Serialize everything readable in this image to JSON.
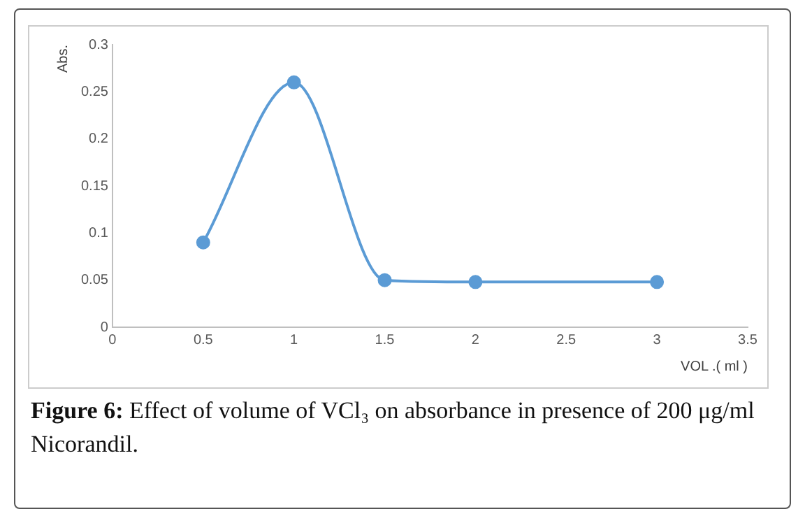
{
  "chart_data": {
    "type": "line",
    "title": "Figure 6: Effect of volume of VCl₃ on absorbance in presence of 200 μg/ml Nicorandil.",
    "xlabel": "VOL .( ml )",
    "ylabel": "Abs.",
    "x": [
      0.5,
      1,
      1.5,
      2,
      3
    ],
    "series": [
      {
        "color": "#5b9bd5",
        "values": [
          0.09,
          0.26,
          0.05,
          0.048,
          0.048
        ]
      }
    ],
    "xlim": [
      0,
      3.5
    ],
    "xticks": [
      0,
      0.5,
      1,
      1.5,
      2,
      2.5,
      3,
      3.5
    ],
    "ylim": [
      0,
      0.3
    ],
    "yticks": [
      0,
      0.05,
      0.1,
      0.15,
      0.2,
      0.25,
      0.3
    ],
    "grid": false,
    "legend": false,
    "marker": "circle",
    "line_style": "solid"
  }
}
